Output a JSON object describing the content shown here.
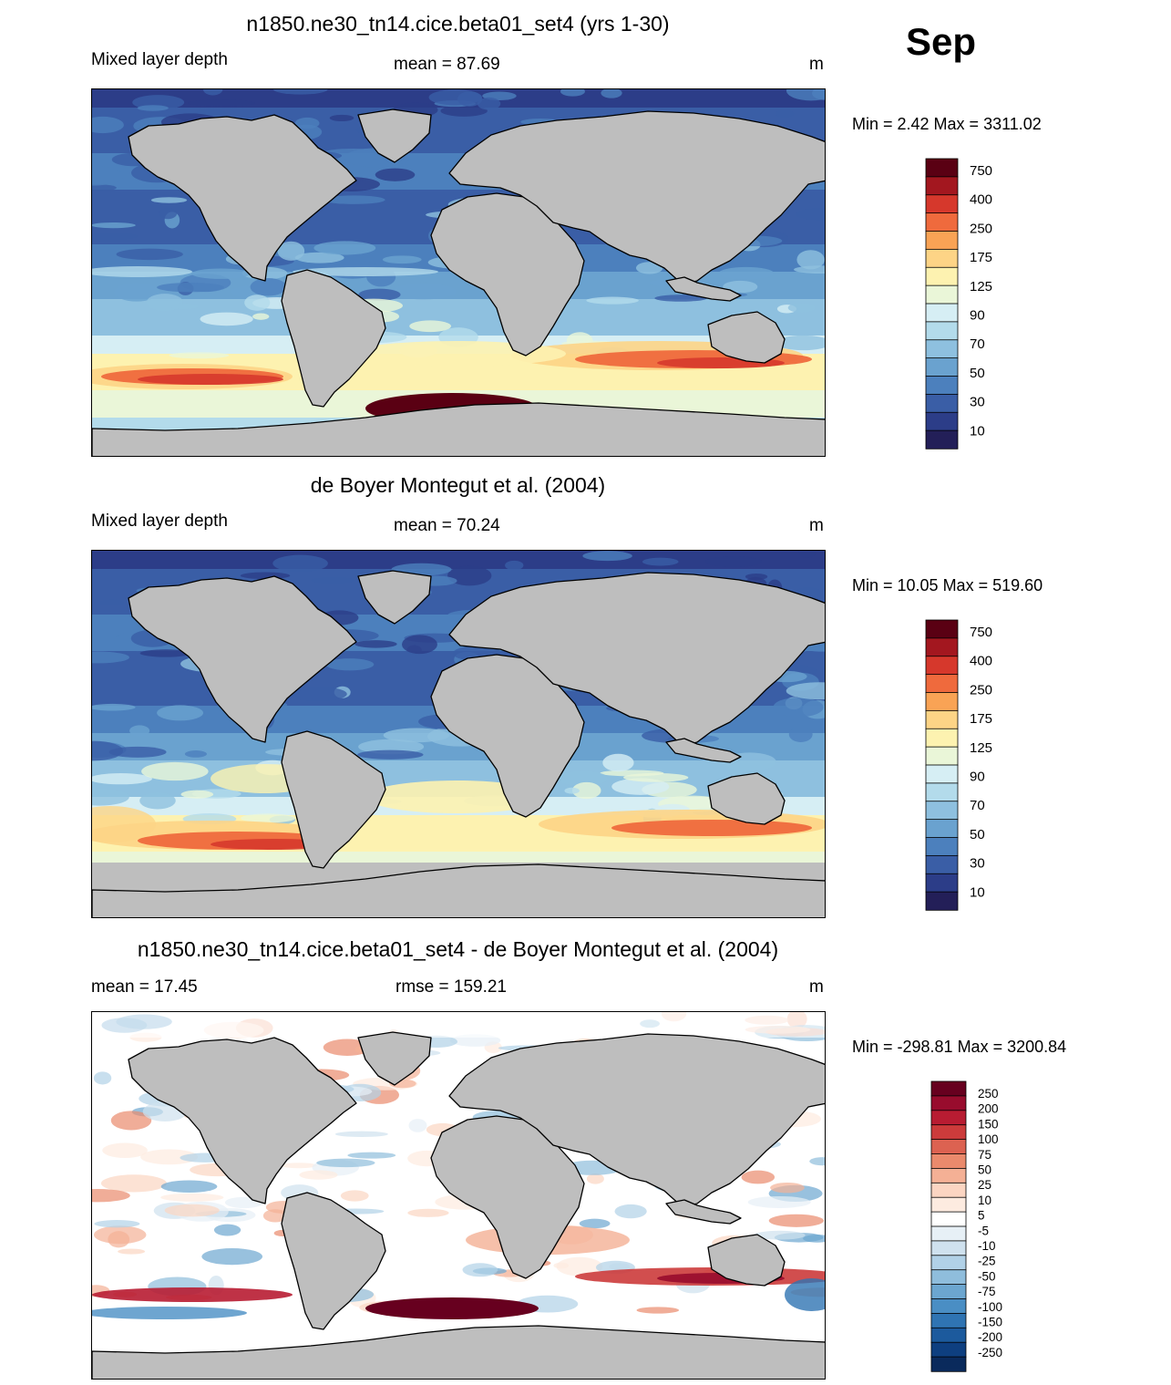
{
  "month": "Sep",
  "panels": [
    {
      "id": "model",
      "title": "n1850.ne30_tn14.cice.beta01_set4 (yrs 1-30)",
      "left_label": "Mixed layer depth",
      "center_label": "mean =  87.69",
      "units": "m",
      "minmax": "Min =   2.42 Max = 3311.02",
      "colorbar_labels": [
        "750",
        "400",
        "250",
        "175",
        "125",
        "90",
        "70",
        "50",
        "30",
        "10"
      ]
    },
    {
      "id": "obs",
      "title": "de Boyer Montegut et al. (2004)",
      "left_label": "Mixed layer depth",
      "center_label": "mean =  70.24",
      "units": "m",
      "minmax": "Min =  10.05 Max = 519.60",
      "colorbar_labels": [
        "750",
        "400",
        "250",
        "175",
        "125",
        "90",
        "70",
        "50",
        "30",
        "10"
      ]
    },
    {
      "id": "diff",
      "title": "n1850.ne30_tn14.cice.beta01_set4 - de Boyer Montegut et al. (2004)",
      "left_label": "mean =  17.45",
      "center_label": "rmse = 159.21",
      "units": "m",
      "minmax": "Min = -298.81 Max = 3200.84",
      "colorbar_labels": [
        "250",
        "200",
        "150",
        "100",
        "75",
        "50",
        "25",
        "10",
        "5",
        "-5",
        "-10",
        "-25",
        "-50",
        "-75",
        "-100",
        "-150",
        "-200",
        "-250"
      ]
    }
  ],
  "colors": {
    "land": "#bebebe",
    "seq_palette": [
      "#5a0013",
      "#a3171f",
      "#d6382c",
      "#ef6a3d",
      "#f9a355",
      "#fdd486",
      "#fdf2b0",
      "#eaf6d8",
      "#d6eef4",
      "#b3dbeb",
      "#8ec0df",
      "#6aa2cf",
      "#4c80bd",
      "#3a5ea6",
      "#2c3d88",
      "#231f58"
    ],
    "div_palette": [
      "#67001f",
      "#980c2d",
      "#b81c32",
      "#cc3b3b",
      "#dc6251",
      "#ea8a6c",
      "#f4b095",
      "#fbd5c2",
      "#fdebe0",
      "#ffffff",
      "#e7f0f6",
      "#cfe1ee",
      "#b1d1e7",
      "#8fbddc",
      "#6ca6d0",
      "#4a8ec4",
      "#2f74b3",
      "#1c5a9d",
      "#0e3f80",
      "#0a2a5c"
    ]
  }
}
